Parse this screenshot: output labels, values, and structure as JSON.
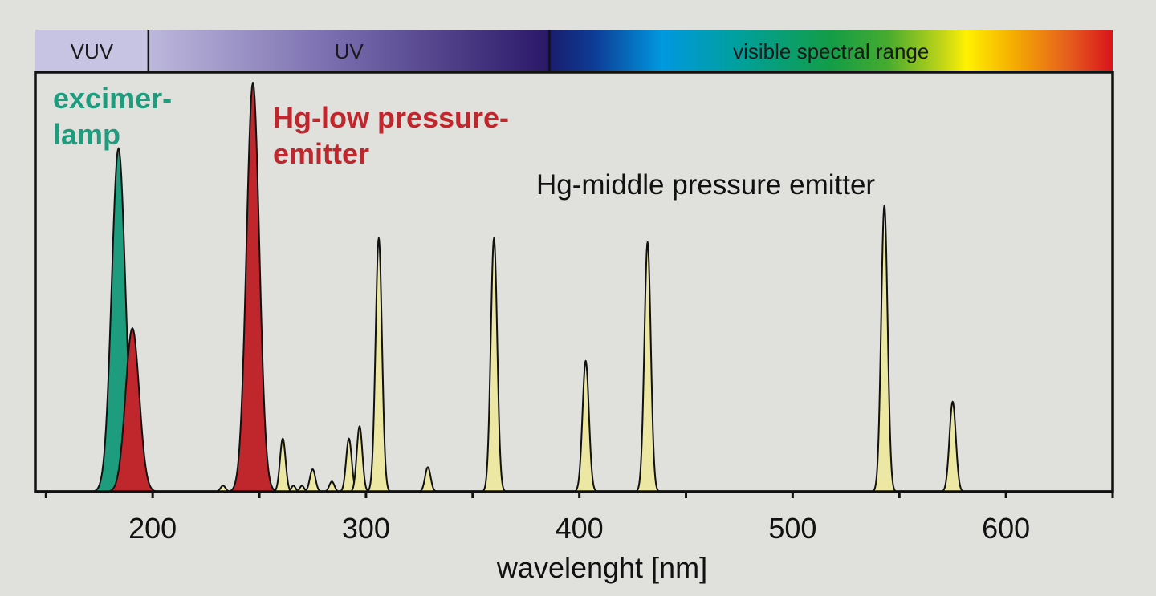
{
  "chart_data": {
    "type": "area",
    "title": "",
    "xlabel": "wavelenght [nm]",
    "ylabel": "",
    "xlim": [
      145,
      650
    ],
    "ylim": [
      0,
      1
    ],
    "x_ticks": [
      200,
      300,
      400,
      500,
      600
    ],
    "x_minor_ticks": [
      150,
      250,
      350,
      450,
      550,
      650
    ],
    "grid": false,
    "spectrum_bands": [
      {
        "label": "VUV",
        "range": [
          145,
          198
        ]
      },
      {
        "label": "UV",
        "range": [
          198,
          386
        ]
      },
      {
        "label": "visible spectral range",
        "range": [
          386,
          650
        ]
      }
    ],
    "series": [
      {
        "name": "excimer-lamp",
        "color": "#1e9c7e",
        "peaks": [
          {
            "x": 184,
            "y": 0.84,
            "w": 3.2
          }
        ]
      },
      {
        "name": "Hg-low pressure-emitter",
        "color": "#c0272d",
        "peaks": [
          {
            "x": 190.5,
            "y": 0.4,
            "w": 3.2
          },
          {
            "x": 247,
            "y": 1.0,
            "w": 3.0
          }
        ]
      },
      {
        "name": "Hg-middle pressure emitter",
        "color": "#ece7a2",
        "peaks": [
          {
            "x": 233,
            "y": 0.015,
            "w": 1.2
          },
          {
            "x": 242,
            "y": 0.04,
            "w": 1.2
          },
          {
            "x": 261,
            "y": 0.13,
            "w": 1.3
          },
          {
            "x": 266,
            "y": 0.015,
            "w": 1.0
          },
          {
            "x": 270,
            "y": 0.015,
            "w": 1.0
          },
          {
            "x": 275,
            "y": 0.055,
            "w": 1.3
          },
          {
            "x": 284,
            "y": 0.025,
            "w": 1.2
          },
          {
            "x": 292,
            "y": 0.13,
            "w": 1.3
          },
          {
            "x": 297,
            "y": 0.16,
            "w": 1.3
          },
          {
            "x": 306,
            "y": 0.62,
            "w": 1.5
          },
          {
            "x": 329,
            "y": 0.06,
            "w": 1.3
          },
          {
            "x": 360,
            "y": 0.62,
            "w": 1.5
          },
          {
            "x": 403,
            "y": 0.32,
            "w": 1.5
          },
          {
            "x": 432,
            "y": 0.61,
            "w": 1.5
          },
          {
            "x": 543,
            "y": 0.7,
            "w": 1.5
          },
          {
            "x": 575,
            "y": 0.22,
            "w": 1.5
          }
        ]
      }
    ],
    "annotations": [
      {
        "id": "excimer",
        "lines": [
          "excimer-",
          "lamp"
        ],
        "color": "#1e9c7e"
      },
      {
        "id": "hglow",
        "lines": [
          "Hg-low pressure-",
          "emitter"
        ],
        "color": "#c0272d"
      },
      {
        "id": "hgmid",
        "lines": [
          "Hg-middle pressure emitter"
        ],
        "color": "#111111"
      }
    ]
  }
}
